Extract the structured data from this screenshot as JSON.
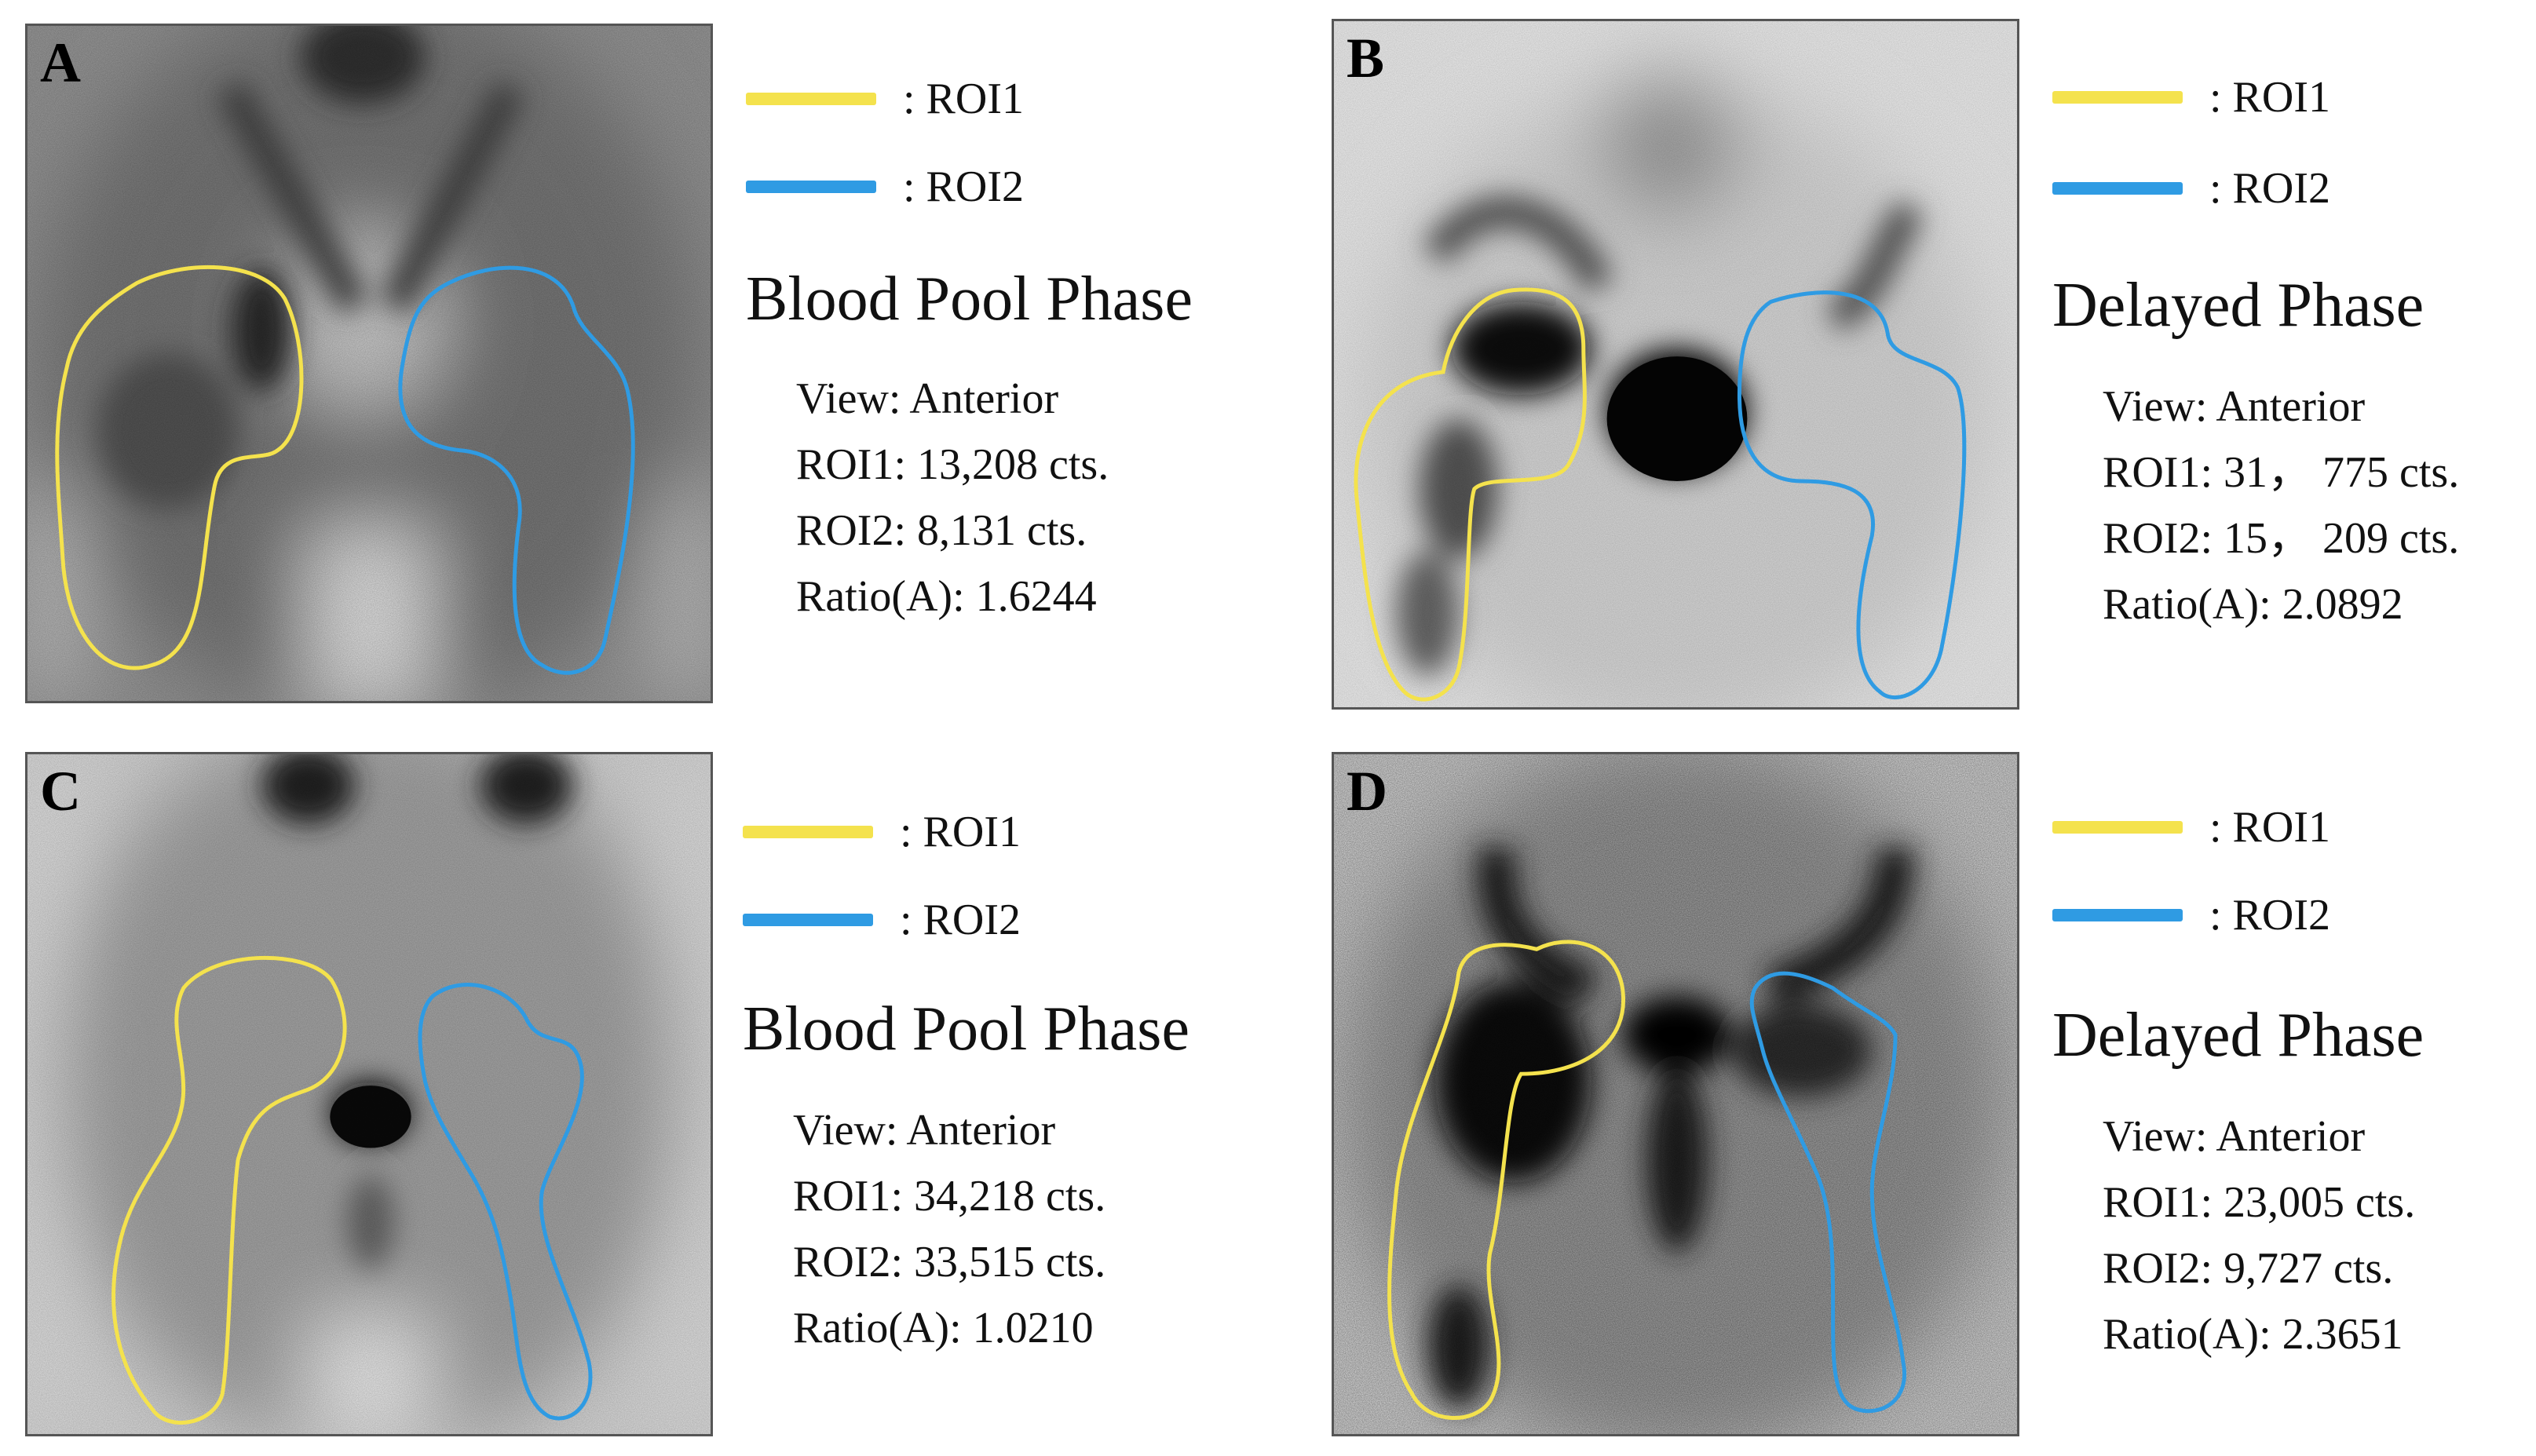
{
  "colors": {
    "roi1": "#f4e24d",
    "roi2": "#2f9be3"
  },
  "panels": [
    {
      "letter": "A",
      "legend": [
        ": ROI1",
        ": ROI2"
      ],
      "phase": "Blood Pool Phase",
      "view": "View: Anterior",
      "roi1": "ROI1: 13,208 cts.",
      "roi2": "ROI2: 8,131 cts.",
      "ratio": "Ratio(A): 1.6244"
    },
    {
      "letter": "B",
      "legend": [
        ": ROI1",
        ": ROI2"
      ],
      "phase": "Delayed Phase",
      "view": "View: Anterior",
      "roi1": "ROI1: 31， 775 cts.",
      "roi2": "ROI2: 15， 209 cts.",
      "ratio": "Ratio(A): 2.0892"
    },
    {
      "letter": "C",
      "legend": [
        ": ROI1",
        ": ROI2"
      ],
      "phase": "Blood Pool Phase",
      "view": "View: Anterior",
      "roi1": "ROI1: 34,218 cts.",
      "roi2": "ROI2: 33,515 cts.",
      "ratio": "Ratio(A): 1.0210"
    },
    {
      "letter": "D",
      "legend": [
        ": ROI1",
        ": ROI2"
      ],
      "phase": "Delayed Phase",
      "view": "View: Anterior",
      "roi1": "ROI1: 23,005 cts.",
      "roi2": "ROI2: 9,727 cts.",
      "ratio": "Ratio(A): 2.3651"
    }
  ]
}
